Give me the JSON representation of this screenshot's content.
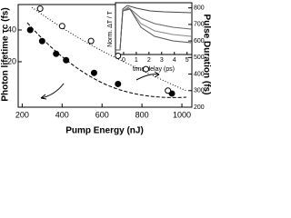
{
  "chart_data": [
    {
      "type": "scatter",
      "x_label": "Pump Energy (nJ)",
      "y_label": "Photon lifetime τc (fs)",
      "y2_label": "Pulse Duration (fs)",
      "xlim": [
        180,
        1050
      ],
      "xticks": [
        200,
        400,
        600,
        800,
        1000
      ],
      "ylim": [
        -8.6,
        56
      ],
      "yticks": [
        20,
        40
      ],
      "y2lim": [
        200,
        820
      ],
      "y2ticks": [
        200,
        300,
        400,
        500,
        600,
        700,
        800
      ],
      "series": [
        {
          "marker": "filled",
          "color": "#000000",
          "x": [
            240,
            300,
            370,
            420,
            560,
            680,
            950
          ],
          "values": [
            40,
            33,
            25,
            21,
            13,
            6,
            0
          ]
        },
        {
          "marker": "open",
          "color": "#000000",
          "axis": "y2",
          "x": [
            290,
            400,
            545,
            680,
            820,
            930
          ],
          "values": [
            795,
            690,
            600,
            510,
            430,
            300
          ]
        }
      ]
    },
    {
      "type": "line",
      "x_label": "time delay (ps)",
      "y_label": "Norm. ΔT / T",
      "xlim": [
        -0.64,
        5.38
      ],
      "xticks": [
        0,
        1,
        2,
        3,
        4,
        5
      ]
    }
  ]
}
